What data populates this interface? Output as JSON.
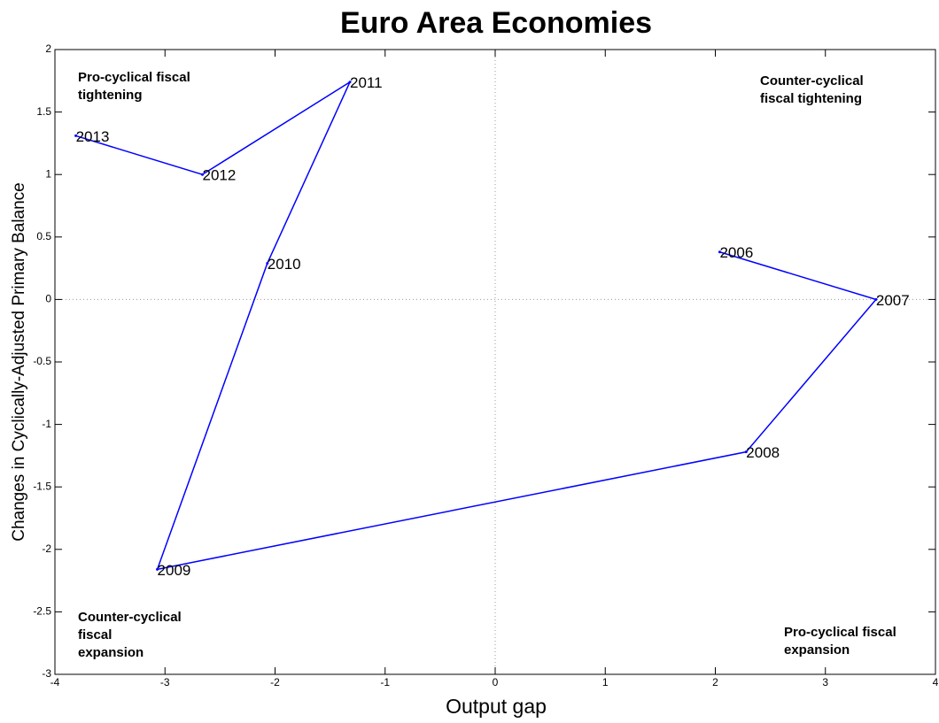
{
  "chart_data": {
    "type": "line",
    "title": "Euro Area Economies",
    "x_label": "Output gap",
    "y_label": "Changes in Cyclically-Adjusted Primary Balance",
    "x": [
      2.04,
      3.46,
      2.28,
      -3.07,
      -2.07,
      -1.32,
      -2.66,
      -3.81
    ],
    "series": [
      {
        "color": "#0000ff",
        "values": [
          0.38,
          0.0,
          -1.22,
          -2.16,
          0.29,
          1.74,
          1.0,
          1.31
        ],
        "point_labels": [
          "2006",
          "2007",
          "2008",
          "2009",
          "2010",
          "2011",
          "2012",
          "2013"
        ]
      }
    ],
    "xlim": [
      -4,
      4
    ],
    "xticks": [
      -4,
      -3,
      -2,
      -1,
      0,
      1,
      2,
      3,
      4
    ],
    "ylim": [
      -3,
      2
    ],
    "yticks": [
      -3,
      -2.5,
      -2,
      -1.5,
      -1,
      -0.5,
      0,
      0.5,
      1,
      1.5,
      2
    ],
    "zero_lines": true,
    "annotations": [
      [
        "Pro-cyclical fiscal",
        "tightening"
      ],
      [
        "Counter-cyclical",
        "fiscal tightening"
      ],
      [
        "Counter-cyclical",
        "fiscal",
        "expansion"
      ],
      [
        "Pro-cyclical fiscal",
        "expansion"
      ]
    ]
  }
}
